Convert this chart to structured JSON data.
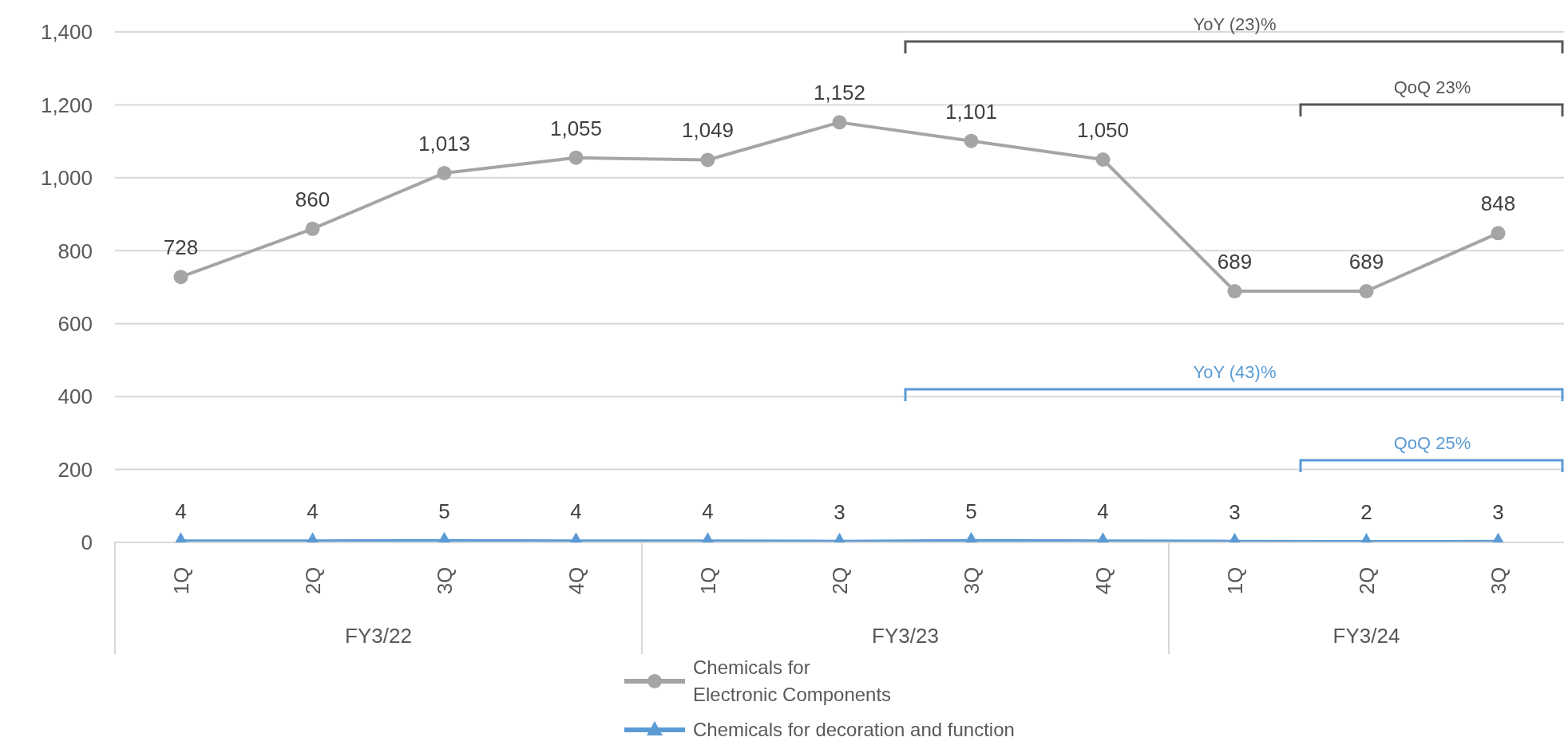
{
  "chart_data": {
    "type": "line",
    "categories": [
      "1Q",
      "2Q",
      "3Q",
      "4Q",
      "1Q",
      "2Q",
      "3Q",
      "4Q",
      "1Q",
      "2Q",
      "3Q"
    ],
    "series": [
      {
        "name": "Chemicals for\nElectronic Components",
        "color": "#a5a5a5",
        "marker": "circle",
        "values": [
          728,
          860,
          1013,
          1055,
          1049,
          1152,
          1101,
          1050,
          689,
          689,
          848
        ],
        "value_labels": [
          "728",
          "860",
          "1,013",
          "1,055",
          "1,049",
          "1,152",
          "1,101",
          "1,050",
          "689",
          "689",
          "848"
        ]
      },
      {
        "name": "Chemicals for decoration and function",
        "color": "#5b9bd5",
        "marker": "triangle",
        "values": [
          4,
          4,
          5,
          4,
          4,
          3,
          5,
          4,
          3,
          2,
          3
        ]
      }
    ],
    "ylim": [
      0,
      1400
    ],
    "yticks": [
      0,
      200,
      400,
      600,
      800,
      {
        "value": 1000,
        "label": "1,000"
      },
      {
        "value": 1200,
        "label": "1,200"
      },
      {
        "value": 1400,
        "label": "1,400"
      }
    ],
    "grid": "y",
    "legend": "bottom",
    "data_labels": true,
    "annotations": [
      "YoY (23)%",
      "QoQ 23%",
      "YoY (43)%",
      "QoQ 25%",
      "FY3/22",
      "FY3/23",
      "FY3/24"
    ]
  }
}
